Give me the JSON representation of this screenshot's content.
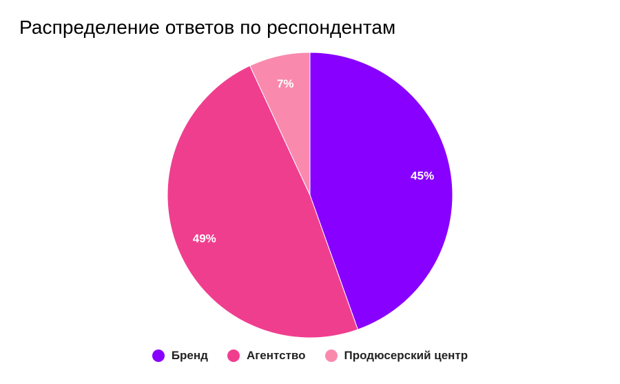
{
  "chart_data": {
    "type": "pie",
    "title": "Распределение ответов по респондентам",
    "slices": [
      {
        "name": "Бренд",
        "value": 45,
        "label": "45%",
        "color": "#8800FF"
      },
      {
        "name": "Агентство",
        "value": 49,
        "label": "49%",
        "color": "#F03E8F"
      },
      {
        "name": "Продюсерский центр",
        "value": 7,
        "label": "7%",
        "color": "#F98AAE"
      }
    ],
    "legend_position": "bottom"
  }
}
